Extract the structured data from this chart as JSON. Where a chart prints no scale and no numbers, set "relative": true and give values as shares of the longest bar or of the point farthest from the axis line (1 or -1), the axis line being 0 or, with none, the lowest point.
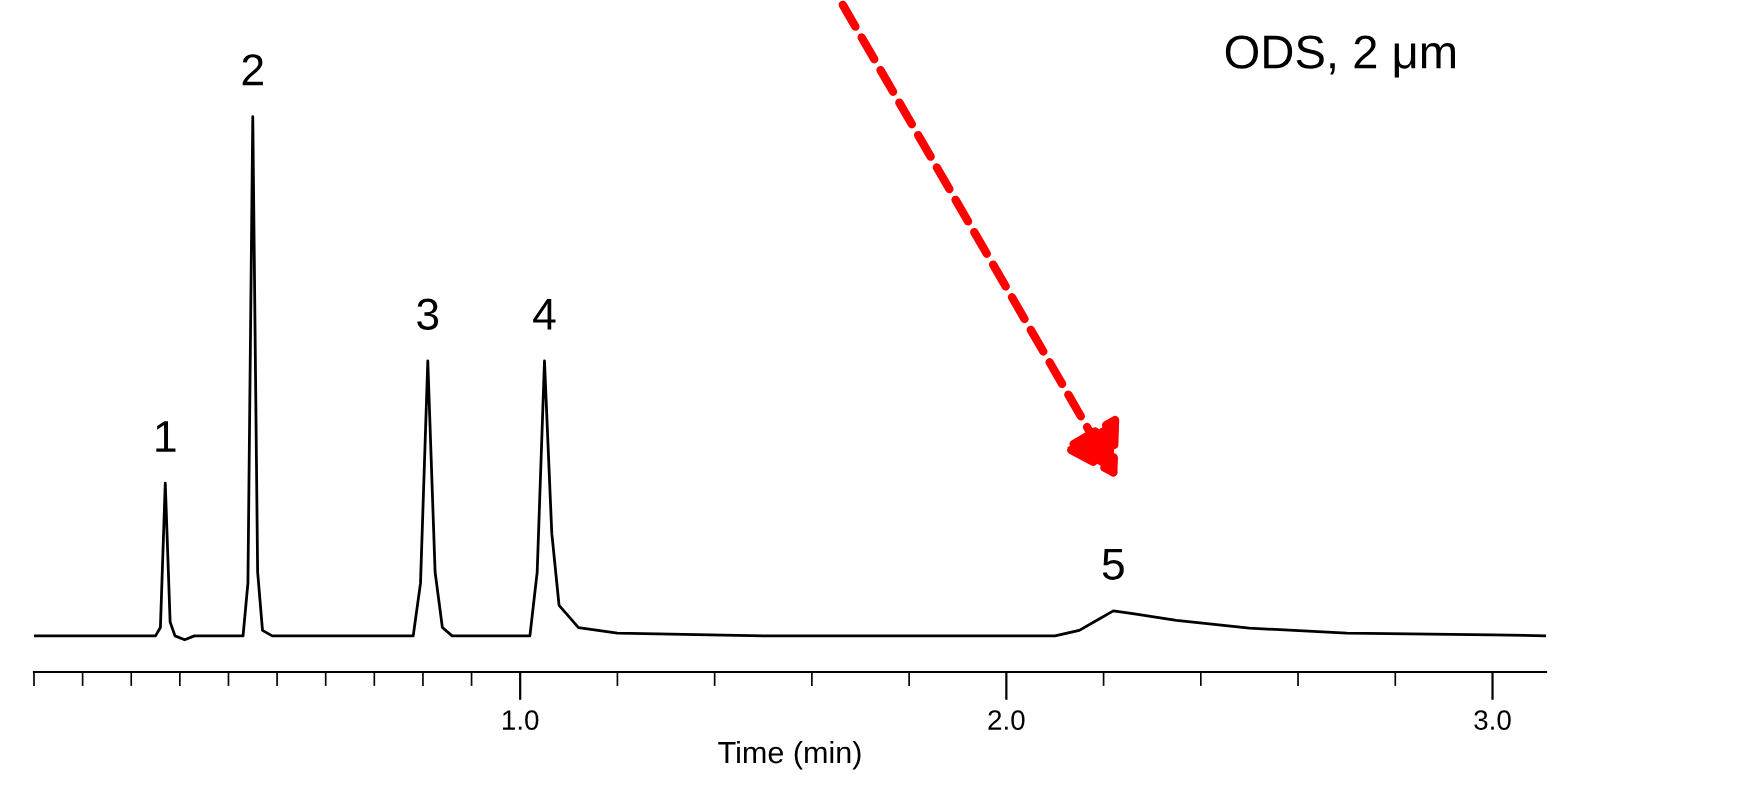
{
  "chart_data": {
    "type": "line",
    "relative": true,
    "xlabel": "Time (min)",
    "xlim": [
      0,
      3.11
    ],
    "xticks": [
      {
        "value": 0,
        "label": null
      },
      {
        "value": 0.1,
        "label": null
      },
      {
        "value": 0.2,
        "label": null
      },
      {
        "value": 0.3,
        "label": null
      },
      {
        "value": 0.4,
        "label": null
      },
      {
        "value": 0.5,
        "label": null
      },
      {
        "value": 0.6,
        "label": null
      },
      {
        "value": 0.7,
        "label": null
      },
      {
        "value": 0.8,
        "label": null
      },
      {
        "value": 0.9,
        "label": null
      },
      {
        "value": 1.0,
        "label": "1.0"
      },
      {
        "value": 1.2,
        "label": null
      },
      {
        "value": 1.4,
        "label": null
      },
      {
        "value": 1.6,
        "label": null
      },
      {
        "value": 1.8,
        "label": null
      },
      {
        "value": 2.0,
        "label": "2.0"
      },
      {
        "value": 2.2,
        "label": null
      },
      {
        "value": 2.4,
        "label": null
      },
      {
        "value": 2.6,
        "label": null
      },
      {
        "value": 2.8,
        "label": null
      },
      {
        "value": 3.0,
        "label": "3.0"
      }
    ],
    "tick_labels": "x",
    "grid": false,
    "legend": false,
    "marker": "none",
    "line_style": "solid",
    "series": [
      {
        "color": "#000000",
        "x": [
          0.0,
          0.25,
          0.26,
          0.27,
          0.28,
          0.29,
          0.31,
          0.33,
          0.43,
          0.44,
          0.45,
          0.46,
          0.47,
          0.49,
          0.78,
          0.795,
          0.81,
          0.825,
          0.84,
          0.86,
          1.02,
          1.035,
          1.05,
          1.065,
          1.08,
          1.12,
          1.2,
          1.5,
          2.1,
          2.15,
          2.19,
          2.22,
          2.26,
          2.35,
          2.5,
          2.7,
          3.0,
          3.11
        ],
        "values": [
          0.065,
          0.065,
          0.08,
          0.34,
          0.09,
          0.065,
          0.058,
          0.065,
          0.065,
          0.16,
          1.0,
          0.18,
          0.075,
          0.065,
          0.065,
          0.16,
          0.56,
          0.18,
          0.08,
          0.065,
          0.065,
          0.18,
          0.56,
          0.25,
          0.12,
          0.08,
          0.07,
          0.065,
          0.065,
          0.075,
          0.095,
          0.11,
          0.105,
          0.093,
          0.079,
          0.07,
          0.067,
          0.065
        ]
      }
    ],
    "annotations": [
      {
        "text": "1",
        "x": 0.27,
        "y": 0.34
      },
      {
        "text": "2",
        "x": 0.45,
        "y": 1.0
      },
      {
        "text": "3",
        "x": 0.81,
        "y": 0.56
      },
      {
        "text": "4",
        "x": 1.05,
        "y": 0.56
      },
      {
        "text": "5",
        "x": 2.22,
        "y": 0.11
      },
      "ODS, 2 μm"
    ]
  }
}
